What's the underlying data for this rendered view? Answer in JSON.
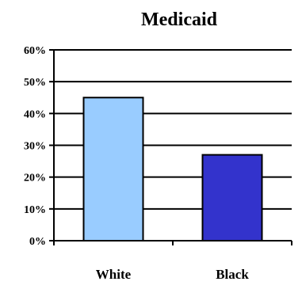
{
  "chart_data": {
    "type": "bar",
    "title": "Medicaid",
    "categories": [
      "White",
      "Black"
    ],
    "values": [
      45,
      27
    ],
    "value_format": "percent",
    "ylim": [
      0,
      60
    ],
    "yticks": [
      "0%",
      "10%",
      "20%",
      "30%",
      "40%",
      "50%",
      "60%"
    ],
    "xlabel": "",
    "ylabel": "",
    "grid": true,
    "legend": "none",
    "colors": {
      "White": "#99ccff",
      "Black": "#3333cc",
      "grid": "#000000",
      "bar_outline": "#000000"
    }
  }
}
